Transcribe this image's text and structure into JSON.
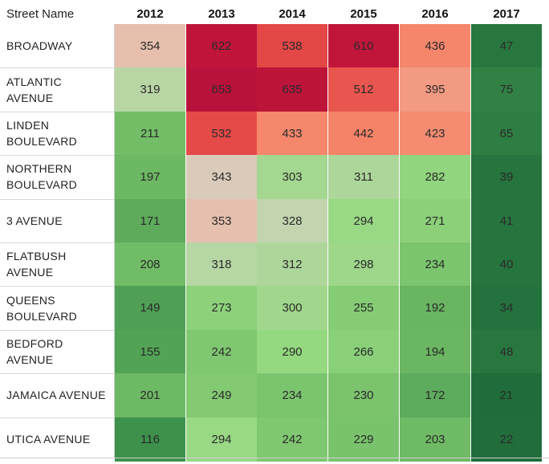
{
  "chart_data": {
    "type": "heatmap",
    "row_header": "Street Name",
    "columns": [
      "2012",
      "2013",
      "2014",
      "2015",
      "2016",
      "2017"
    ],
    "rows": [
      {
        "label": "BROADWAY",
        "values": [
          354,
          622,
          538,
          610,
          436,
          47
        ]
      },
      {
        "label": "ATLANTIC AVENUE",
        "values": [
          319,
          653,
          635,
          512,
          395,
          75
        ]
      },
      {
        "label": "LINDEN BOULEVARD",
        "values": [
          211,
          532,
          433,
          442,
          423,
          65
        ]
      },
      {
        "label": "NORTHERN BOULEVARD",
        "values": [
          197,
          343,
          303,
          311,
          282,
          39
        ]
      },
      {
        "label": "3 AVENUE",
        "values": [
          171,
          353,
          328,
          294,
          271,
          41
        ]
      },
      {
        "label": "FLATBUSH AVENUE",
        "values": [
          208,
          318,
          312,
          298,
          234,
          40
        ]
      },
      {
        "label": "QUEENS BOULEVARD",
        "values": [
          149,
          273,
          300,
          255,
          192,
          34
        ]
      },
      {
        "label": "BEDFORD AVENUE",
        "values": [
          155,
          242,
          290,
          266,
          194,
          48
        ]
      },
      {
        "label": "JAMAICA AVENUE",
        "values": [
          201,
          249,
          234,
          230,
          172,
          21
        ]
      },
      {
        "label": "UTICA AVENUE",
        "values": [
          116,
          294,
          242,
          229,
          203,
          22
        ]
      }
    ],
    "color_scale": {
      "low": "#1f6b3a",
      "mid": "#d9d0bd",
      "high": "#b8123a",
      "mid_value": 340
    }
  }
}
